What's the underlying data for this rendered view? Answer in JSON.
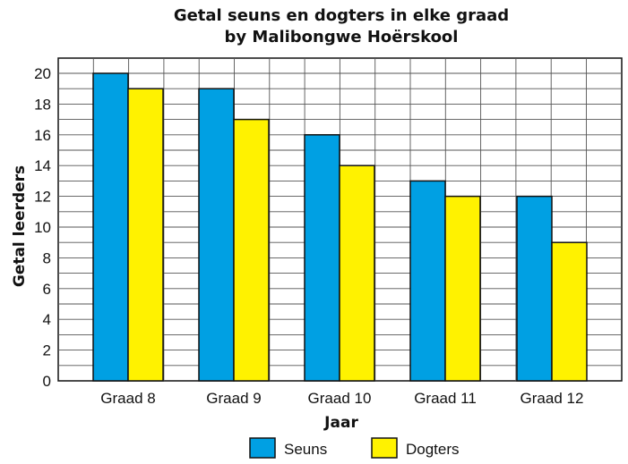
{
  "chart_data": {
    "type": "bar",
    "title": "Getal seuns en dogters in elke graad",
    "subtitle": "by Malibongwe Hoërskool",
    "xlabel": "Jaar",
    "ylabel": "Getal leerders",
    "categories": [
      "Graad 8",
      "Graad 9",
      "Graad 10",
      "Graad 11",
      "Graad 12"
    ],
    "series": [
      {
        "name": "Seuns",
        "values": [
          20,
          19,
          16,
          13,
          12
        ],
        "color": "#00a0e3"
      },
      {
        "name": "Dogters",
        "values": [
          19,
          17,
          14,
          12,
          9
        ],
        "color": "#fff200"
      }
    ],
    "ylim": [
      0,
      20
    ],
    "y_ticks": [
      0,
      2,
      4,
      6,
      8,
      10,
      12,
      14,
      16,
      18,
      20
    ],
    "grid": true,
    "legend_position": "bottom"
  }
}
